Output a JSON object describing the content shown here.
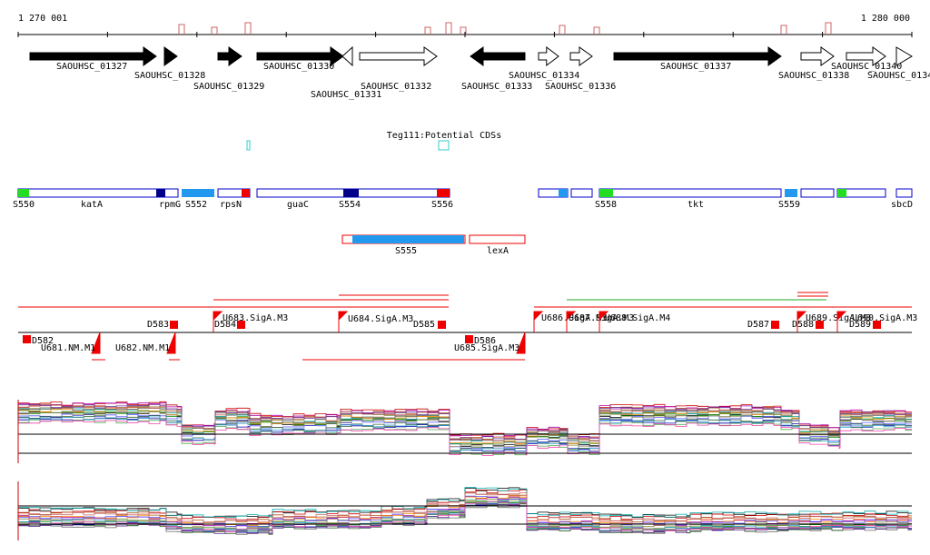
{
  "axis": {
    "start": "1 270 001",
    "end": "1 280 000"
  },
  "genes": [
    "SAOUHSC_01327",
    "SAOUHSC_01328",
    "SAOUHSC_01329",
    "SAOUHSC_01330",
    "SAOUHSC_01331",
    "SAOUHSC_01332",
    "SAOUHSC_01333",
    "SAOUHSC_01334",
    "SAOUHSC_01336",
    "SAOUHSC_01337",
    "SAOUHSC_01338",
    "SAOUHSC_01340",
    "SAOUHSC_0134"
  ],
  "track_title": "Teg111:Potential CDSs",
  "segments": [
    "S550",
    "katA",
    "rpmG",
    "S552",
    "rpsN",
    "guaC",
    "S554",
    "S556",
    "S558",
    "tkt",
    "S559",
    "sbcD",
    "S555",
    "lexA"
  ],
  "features": [
    "D582",
    "U681.NM.M1",
    "U682.NM.M1",
    "D583",
    "U683.SigA.M3",
    "D584",
    "U684.SigA.M3",
    "D585",
    "D586",
    "U685.SigA.M3",
    "U686.SigA.M3",
    "U687.SigA.M3",
    "U688.SigA.M4",
    "D587",
    "D588",
    "U689.SigA.M3",
    "U690.SigA.M3",
    "D589"
  ]
}
